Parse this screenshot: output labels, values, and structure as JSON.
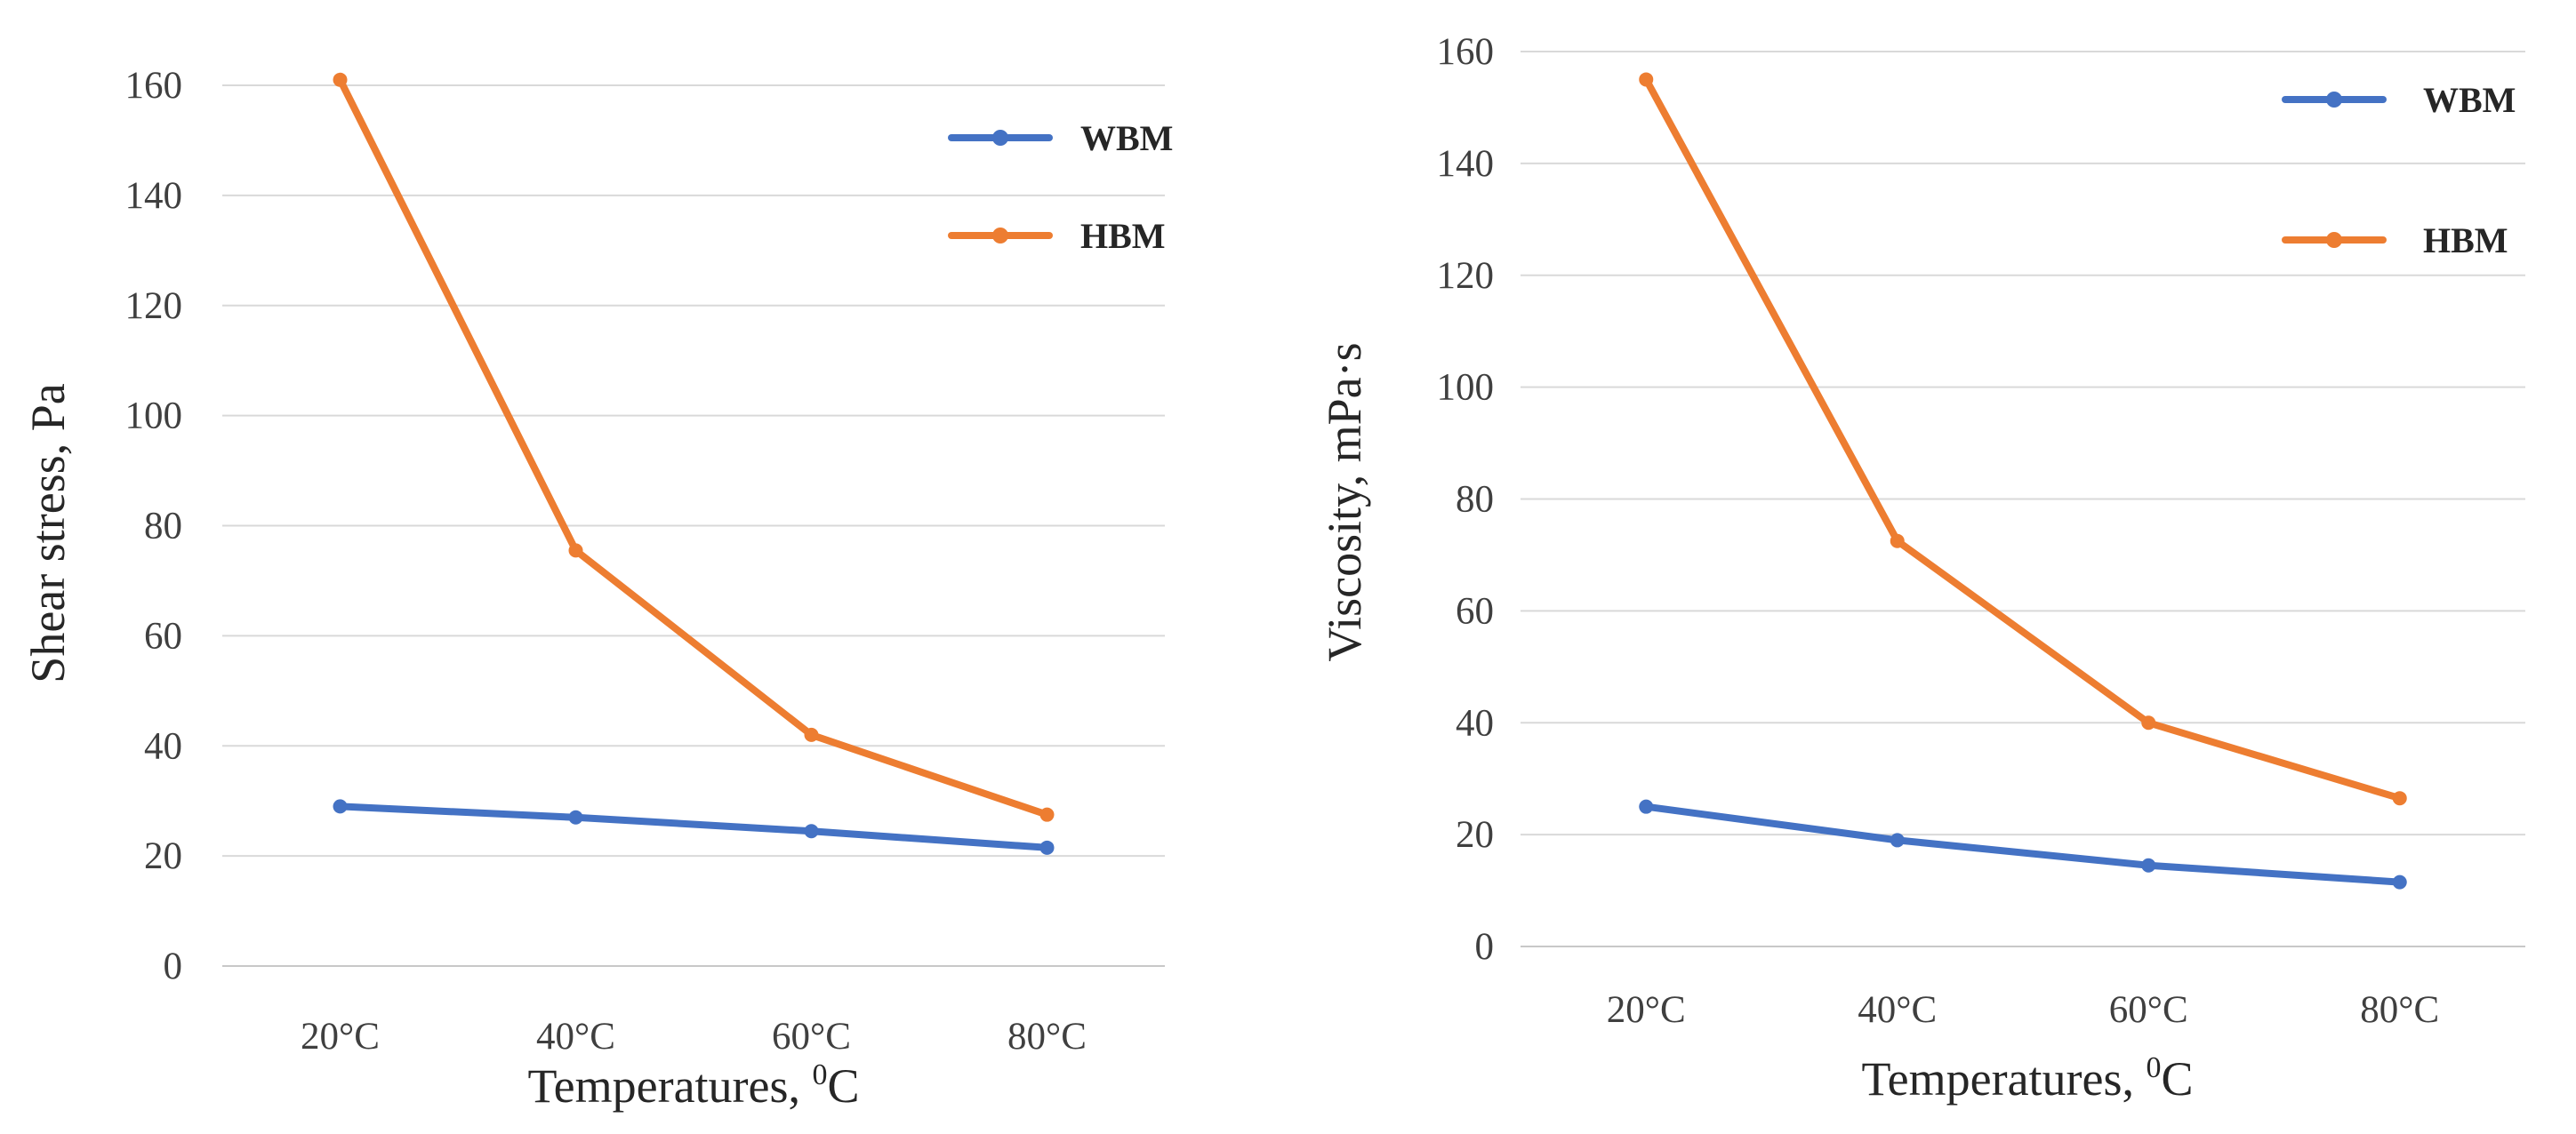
{
  "chart_data": [
    {
      "type": "line",
      "categories": [
        "20°C",
        "40°C",
        "60°C",
        "80°C"
      ],
      "series": [
        {
          "name": "WBM",
          "color": "#4472C4",
          "values": [
            29,
            27,
            24.5,
            21.5
          ]
        },
        {
          "name": "HBM",
          "color": "#ED7D31",
          "values": [
            161,
            75.5,
            42,
            27.5
          ]
        }
      ],
      "xlabel_prefix": "Temperatures, ",
      "xlabel_sup": "0",
      "xlabel_suffix": "C",
      "ylabel": "Shear stress, Pa",
      "ylim": [
        0,
        160
      ],
      "yticks": [
        0,
        20,
        40,
        60,
        80,
        100,
        120,
        140,
        160
      ],
      "grid": true,
      "legend_position": "top-right"
    },
    {
      "type": "line",
      "categories": [
        "20°C",
        "40°C",
        "60°C",
        "80°C"
      ],
      "series": [
        {
          "name": "WBM",
          "color": "#4472C4",
          "values": [
            25,
            19,
            14.5,
            11.5
          ]
        },
        {
          "name": "HBM",
          "color": "#ED7D31",
          "values": [
            155,
            72.5,
            40,
            26.5
          ]
        }
      ],
      "xlabel_prefix": "Temperatures, ",
      "xlabel_sup": "0",
      "xlabel_suffix": "C",
      "ylabel": "Viscosity, mPa·s",
      "ylim": [
        0,
        160
      ],
      "yticks": [
        0,
        20,
        40,
        60,
        80,
        100,
        120,
        140,
        160
      ],
      "grid": true,
      "legend_position": "top-right"
    }
  ]
}
